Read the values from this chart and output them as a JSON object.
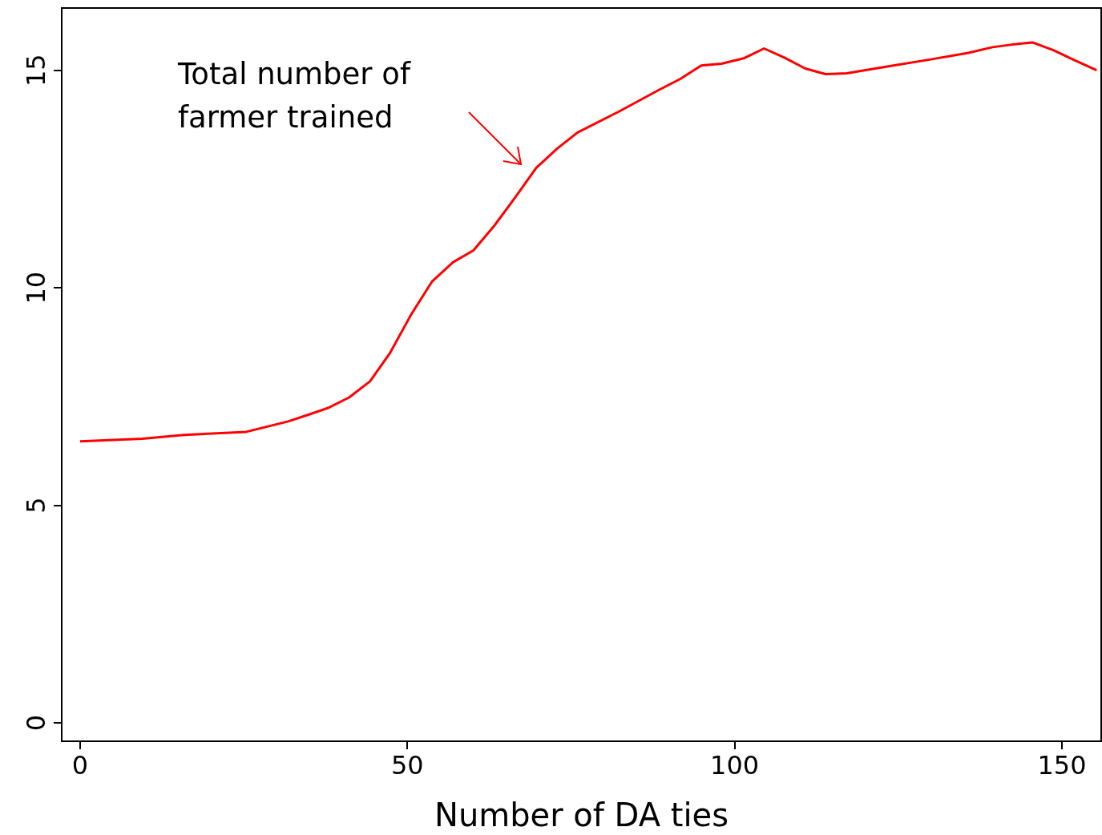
{
  "chart_data": {
    "type": "line",
    "xlabel": "Number of DA ties",
    "x": [
      0,
      9.5,
      15.9,
      25.4,
      31.8,
      34.8,
      37.9,
      41.1,
      44.3,
      47.3,
      50.6,
      53.8,
      57.0,
      60.1,
      63.3,
      66.5,
      69.7,
      72.9,
      76.0,
      82.2,
      88.6,
      91.7,
      94.9,
      98.0,
      101.5,
      104.5,
      107.6,
      110.8,
      113.9,
      117.1,
      123.5,
      129.6,
      135.7,
      139.4,
      142.4,
      145.5,
      148.7,
      151.8,
      155.3
    ],
    "series": [
      {
        "color": "#ff0000",
        "values": [
          6.47,
          6.53,
          6.62,
          6.69,
          6.93,
          7.08,
          7.24,
          7.48,
          7.85,
          8.49,
          9.39,
          10.15,
          10.59,
          10.86,
          11.43,
          12.08,
          12.76,
          13.2,
          13.57,
          14.04,
          14.56,
          14.8,
          15.11,
          15.15,
          15.28,
          15.5,
          15.29,
          15.04,
          14.91,
          14.93,
          15.09,
          15.24,
          15.4,
          15.53,
          15.59,
          15.64,
          15.46,
          15.24,
          15.0
        ]
      }
    ],
    "xlim": [
      -2.8,
      156
    ],
    "xticks": [
      0,
      50,
      100,
      150
    ],
    "ylim": [
      -0.42,
      16.43
    ],
    "yticks": [
      0,
      5,
      10,
      15
    ],
    "grid": false,
    "marker": "none",
    "line_style": "solid",
    "annotations": [
      "Total number of\nfarmer trained"
    ]
  }
}
